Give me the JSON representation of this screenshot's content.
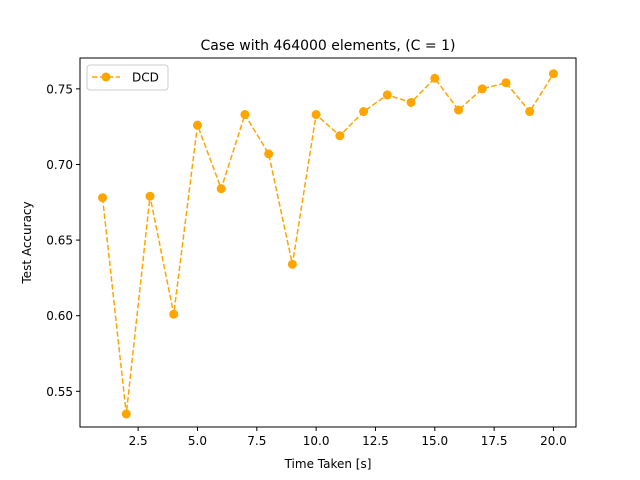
{
  "chart_data": {
    "type": "line",
    "title": "Case with 464000 elements, (C = 1)",
    "xlabel": "Time Taken [s]",
    "ylabel": "Test Accuracy",
    "xlim": [
      0.05,
      20.95
    ],
    "ylim": [
      0.5264,
      0.7704
    ],
    "xticks": [
      2.5,
      5.0,
      7.5,
      10.0,
      12.5,
      15.0,
      17.5,
      20.0
    ],
    "xtick_labels": [
      "2.5",
      "5.0",
      "7.5",
      "10.0",
      "12.5",
      "15.0",
      "17.5",
      "20.0"
    ],
    "yticks": [
      0.55,
      0.6,
      0.65,
      0.7,
      0.75
    ],
    "ytick_labels": [
      "0.55",
      "0.60",
      "0.65",
      "0.70",
      "0.75"
    ],
    "grid": false,
    "legend": "upper-left",
    "series": [
      {
        "name": "DCD",
        "color": "#ffa500",
        "line_style": "dashed",
        "marker": "circle",
        "x": [
          1,
          2,
          3,
          4,
          5,
          6,
          7,
          8,
          9,
          10,
          11,
          12,
          13,
          14,
          15,
          16,
          17,
          18,
          19,
          20
        ],
        "y": [
          0.678,
          0.535,
          0.679,
          0.601,
          0.726,
          0.684,
          0.733,
          0.707,
          0.634,
          0.733,
          0.719,
          0.735,
          0.746,
          0.741,
          0.757,
          0.736,
          0.75,
          0.754,
          0.735,
          0.76
        ]
      }
    ]
  }
}
